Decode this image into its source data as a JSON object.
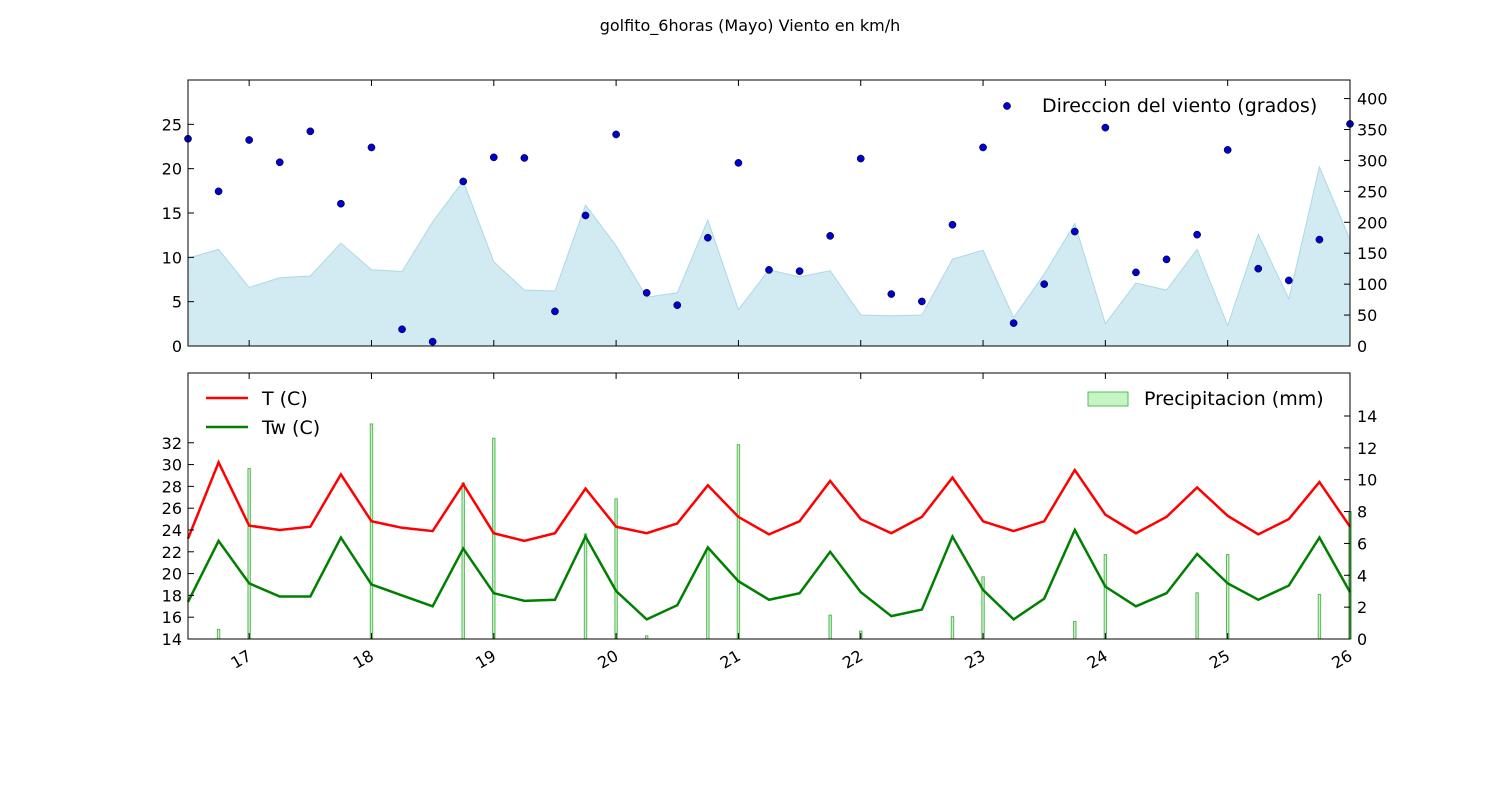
{
  "figure": {
    "title": "golfito_6horas (Mayo) Viento en km/h"
  },
  "chart_data": [
    {
      "type": "area",
      "panel": "wind",
      "x_start": "2016-05-16 12:00",
      "x_step_hours": 6,
      "xlim": [
        "2016-05-16 12:00",
        "2016-05-26 00:00"
      ],
      "ylim": [
        0,
        30
      ],
      "yticks": [
        0,
        5,
        10,
        15,
        20,
        25
      ],
      "y2lim": [
        0,
        430
      ],
      "y2ticks": [
        0,
        50,
        100,
        150,
        200,
        250,
        300,
        350,
        400
      ],
      "series": [
        {
          "kind": "area",
          "axis": "left",
          "color": "#add8e6",
          "values": [
            9.9,
            10.9,
            6.6,
            7.7,
            7.9,
            11.6,
            8.6,
            8.4,
            14.0,
            18.6,
            9.5,
            6.3,
            6.2,
            15.9,
            11.3,
            5.5,
            6.0,
            14.2,
            4.1,
            8.6,
            7.8,
            8.5,
            3.5,
            3.4,
            3.5,
            9.8,
            10.8,
            3.2,
            8.1,
            13.8,
            2.5,
            7.1,
            6.3,
            10.9,
            2.3,
            12.6,
            5.3,
            20.2,
            12.0
          ]
        },
        {
          "kind": "scatter",
          "axis": "right",
          "name": "Direccion del viento (grados)",
          "color": "#0000cc",
          "values": [
            335,
            250,
            333,
            297,
            347,
            230,
            321,
            27,
            7,
            266,
            305,
            304,
            56,
            211,
            342,
            86,
            66,
            175,
            296,
            123,
            121,
            178,
            303,
            84,
            72,
            196,
            321,
            37,
            100,
            185,
            353,
            119,
            140,
            180,
            317,
            125,
            106,
            172,
            359
          ]
        }
      ],
      "legend": {
        "entries": [
          "Direccion del viento (grados)"
        ],
        "placement": "upper-right"
      }
    },
    {
      "type": "line",
      "panel": "temperature",
      "x_start": "2016-05-16 12:00",
      "x_step_hours": 6,
      "xlim": [
        "2016-05-16 12:00",
        "2016-05-26 00:00"
      ],
      "xtick_labels": [
        "17",
        "18",
        "19",
        "20",
        "21",
        "22",
        "23",
        "24",
        "25",
        "26"
      ],
      "ylim": [
        14,
        38.4
      ],
      "yticks": [
        14,
        16,
        18,
        20,
        22,
        24,
        26,
        28,
        30,
        32
      ],
      "y2lim": [
        0,
        16.7
      ],
      "y2ticks": [
        0,
        2,
        4,
        6,
        8,
        10,
        12,
        14
      ],
      "series": [
        {
          "kind": "line",
          "axis": "left",
          "name": "T (C)",
          "color": "#ff0000",
          "values": [
            23.2,
            30.2,
            24.4,
            24.0,
            24.3,
            29.1,
            24.8,
            24.2,
            23.9,
            28.2,
            23.7,
            23.0,
            23.7,
            27.8,
            24.3,
            23.7,
            24.6,
            28.1,
            25.2,
            23.6,
            24.8,
            28.5,
            25.0,
            23.7,
            25.2,
            28.8,
            24.8,
            23.9,
            24.8,
            29.5,
            25.4,
            23.7,
            25.2,
            27.9,
            25.3,
            23.6,
            25.0,
            28.4,
            24.3
          ]
        },
        {
          "kind": "line",
          "axis": "left",
          "name": "Tw (C)",
          "color": "#008000",
          "values": [
            17.4,
            23.0,
            19.1,
            17.9,
            17.9,
            23.3,
            19.0,
            18.0,
            17.0,
            22.3,
            18.2,
            17.5,
            17.6,
            23.4,
            18.4,
            15.8,
            17.1,
            22.4,
            19.3,
            17.6,
            18.2,
            22.0,
            18.3,
            16.1,
            16.7,
            23.4,
            18.5,
            15.8,
            17.7,
            24.0,
            18.8,
            17.0,
            18.2,
            21.8,
            19.1,
            17.6,
            18.9,
            23.3,
            18.3
          ]
        },
        {
          "kind": "bar",
          "axis": "right",
          "name": "Precipitacion (mm)",
          "color": "#c5f5c5",
          "edge_color": "#5cb85c",
          "values": [
            0,
            0.6,
            10.7,
            0,
            0,
            0,
            13.5,
            0,
            0,
            9.8,
            12.6,
            0,
            0,
            6.6,
            8.8,
            0.2,
            0,
            5.7,
            12.2,
            0,
            0,
            1.5,
            0.5,
            0,
            0,
            1.4,
            3.9,
            0,
            0,
            1.1,
            5.3,
            0,
            0,
            2.9,
            5.3,
            0,
            0,
            2.8,
            8.0
          ]
        }
      ],
      "legend": {
        "left_entries": [
          "T (C)",
          "Tw (C)"
        ],
        "right_entries": [
          "Precipitacion (mm)"
        ],
        "placement": "upper-left / upper-right"
      }
    }
  ]
}
